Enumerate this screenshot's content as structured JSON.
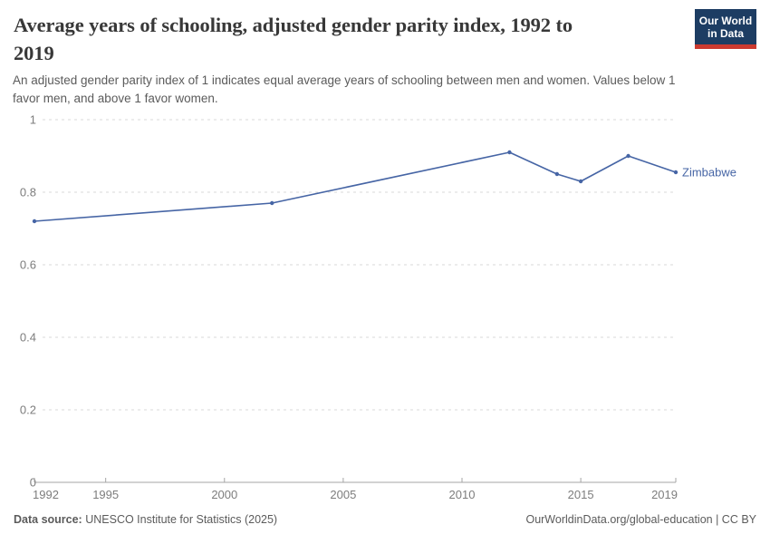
{
  "header": {
    "title_lines": [
      "Average years of schooling, adjusted gender parity index, 1992 to",
      "2019"
    ],
    "subtitle_lines": [
      "An adjusted gender parity index of 1 indicates equal average years of schooling between men and women. Values below 1",
      "favor men, and above 1 favor women."
    ],
    "logo": {
      "lines": [
        "Our World",
        "in Data"
      ]
    }
  },
  "colors": {
    "logo_bg": "#1d3d63",
    "logo_accent": "#cb3a30",
    "series_blue": "#4665a5",
    "title_text": "#383838",
    "muted_text": "#5b5b5b",
    "tick_text": "#7d7d7d",
    "gridline": "#dadada",
    "axis": "#a5a5a5"
  },
  "chart_data": {
    "type": "line",
    "title": "Average years of schooling, adjusted gender parity index, 1992 to 2019",
    "xlabel": "",
    "ylabel": "",
    "xlim": [
      1992,
      2019
    ],
    "ylim": [
      0,
      1
    ],
    "grid": "horizontal dashed",
    "legend_position": "end-of-line label",
    "series": [
      {
        "name": "Zimbabwe",
        "color": "#4665a5",
        "points": [
          {
            "x": 1992,
            "y": 0.72
          },
          {
            "x": 2002,
            "y": 0.77
          },
          {
            "x": 2012,
            "y": 0.91
          },
          {
            "x": 2014,
            "y": 0.85
          },
          {
            "x": 2015,
            "y": 0.83
          },
          {
            "x": 2017,
            "y": 0.9
          },
          {
            "x": 2019,
            "y": 0.855
          }
        ]
      }
    ],
    "x_ticks": [
      {
        "year": 1992,
        "label": "1992"
      },
      {
        "year": 1995,
        "label": "1995"
      },
      {
        "year": 2000,
        "label": "2000"
      },
      {
        "year": 2005,
        "label": "2005"
      },
      {
        "year": 2010,
        "label": "2010"
      },
      {
        "year": 2015,
        "label": "2015"
      },
      {
        "year": 2019,
        "label": "2019"
      }
    ],
    "y_ticks": [
      {
        "value": 0,
        "label": "0"
      },
      {
        "value": 0.2,
        "label": "0.2"
      },
      {
        "value": 0.4,
        "label": "0.4"
      },
      {
        "value": 0.6,
        "label": "0.6"
      },
      {
        "value": 0.8,
        "label": "0.8"
      },
      {
        "value": 1,
        "label": "1"
      }
    ]
  },
  "footer": {
    "source_label": "Data source:",
    "source_text": "UNESCO Institute for Statistics (2025)",
    "rights_text": "OurWorldinData.org/global-education | CC BY"
  }
}
